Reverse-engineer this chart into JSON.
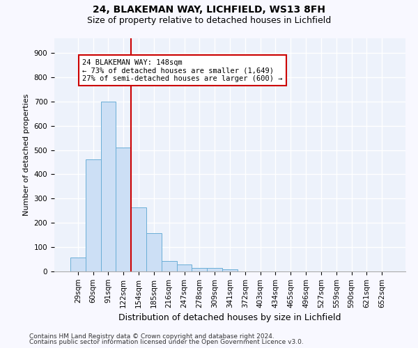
{
  "title1": "24, BLAKEMAN WAY, LICHFIELD, WS13 8FH",
  "title2": "Size of property relative to detached houses in Lichfield",
  "xlabel": "Distribution of detached houses by size in Lichfield",
  "ylabel": "Number of detached properties",
  "categories": [
    "29sqm",
    "60sqm",
    "91sqm",
    "122sqm",
    "154sqm",
    "185sqm",
    "216sqm",
    "247sqm",
    "278sqm",
    "309sqm",
    "341sqm",
    "372sqm",
    "403sqm",
    "434sqm",
    "465sqm",
    "496sqm",
    "527sqm",
    "559sqm",
    "590sqm",
    "621sqm",
    "652sqm"
  ],
  "values": [
    57,
    462,
    700,
    510,
    265,
    158,
    44,
    30,
    15,
    14,
    10,
    0,
    0,
    0,
    0,
    0,
    0,
    0,
    0,
    0,
    0
  ],
  "bar_color": "#ccdff5",
  "bar_edge_color": "#6aaed6",
  "vline_x": 3.5,
  "vline_color": "#cc0000",
  "annotation_line1": "24 BLAKEMAN WAY: 148sqm",
  "annotation_line2": "← 73% of detached houses are smaller (1,649)",
  "annotation_line3": "27% of semi-detached houses are larger (600) →",
  "annotation_box_color": "#ffffff",
  "annotation_box_edge_color": "#cc0000",
  "ylim": [
    0,
    960
  ],
  "yticks": [
    0,
    100,
    200,
    300,
    400,
    500,
    600,
    700,
    800,
    900
  ],
  "footnote1": "Contains HM Land Registry data © Crown copyright and database right 2024.",
  "footnote2": "Contains public sector information licensed under the Open Government Licence v3.0.",
  "fig_bg_color": "#f8f8ff",
  "ax_bg_color": "#edf2fb",
  "grid_color": "#ffffff",
  "title1_fontsize": 10,
  "title2_fontsize": 9,
  "ylabel_fontsize": 8,
  "xlabel_fontsize": 9,
  "tick_fontsize": 7.5,
  "footnote_fontsize": 6.5
}
